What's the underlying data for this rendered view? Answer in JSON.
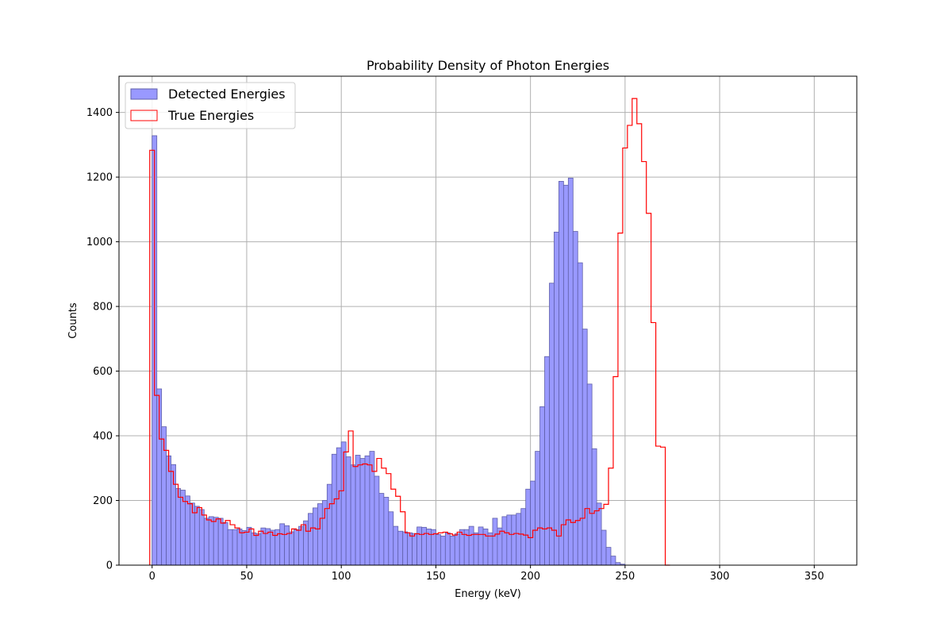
{
  "chart_data": {
    "type": "bar",
    "title": "Probability Density of Photon Energies",
    "xlabel": "Energy (keV)",
    "ylabel": "Counts",
    "xlim": [
      -17.5,
      372.5
    ],
    "ylim": [
      0,
      1512
    ],
    "xticks": [
      0,
      50,
      100,
      150,
      200,
      250,
      300,
      350
    ],
    "yticks": [
      0,
      200,
      400,
      600,
      800,
      1000,
      1200,
      1400
    ],
    "grid": true,
    "legend_position": "upper left",
    "bin_start": 0,
    "bin_width": 2.5,
    "series": [
      {
        "name": "Detected Energies",
        "style": "filled bars",
        "color": "#9999ff",
        "edge_color": "#5f5fa8",
        "values": [
          1328,
          545,
          428,
          338,
          311,
          237,
          232,
          214,
          192,
          182,
          172,
          145,
          150,
          148,
          145,
          132,
          110,
          110,
          112,
          107,
          117,
          100,
          97,
          115,
          113,
          108,
          110,
          128,
          122,
          103,
          110,
          120,
          137,
          160,
          177,
          190,
          200,
          250,
          343,
          363,
          381,
          335,
          310,
          340,
          330,
          338,
          352,
          275,
          222,
          210,
          165,
          120,
          105,
          103,
          100,
          98,
          118,
          117,
          112,
          110,
          95,
          90,
          100,
          90,
          97,
          110,
          110,
          120,
          100,
          118,
          112,
          100,
          145,
          115,
          150,
          155,
          155,
          160,
          175,
          235,
          260,
          352,
          490,
          645,
          872,
          1030,
          1187,
          1175,
          1197,
          1032,
          935,
          730,
          560,
          360,
          192,
          108,
          55,
          28,
          8,
          3,
          0
        ],
        "bins_start_at": 0
      },
      {
        "name": "True Energies",
        "style": "step outline",
        "color": "#ff0000",
        "values": [
          1283,
          525,
          390,
          355,
          290,
          250,
          210,
          197,
          190,
          162,
          178,
          155,
          140,
          135,
          143,
          130,
          138,
          125,
          115,
          100,
          102,
          112,
          92,
          105,
          98,
          102,
          92,
          97,
          95,
          98,
          112,
          108,
          125,
          105,
          115,
          112,
          145,
          175,
          190,
          205,
          230,
          350,
          415,
          305,
          310,
          313,
          310,
          290,
          330,
          300,
          283,
          235,
          213,
          165,
          100,
          90,
          97,
          95,
          98,
          95,
          97,
          100,
          102,
          97,
          93,
          102,
          95,
          92,
          95,
          95,
          95,
          90,
          90,
          96,
          105,
          100,
          95,
          98,
          96,
          93,
          85,
          108,
          115,
          112,
          115,
          108,
          90,
          125,
          140,
          132,
          138,
          145,
          175,
          160,
          168,
          175,
          188,
          300,
          583,
          1027,
          1290,
          1360,
          1443,
          1365,
          1248,
          1088,
          750,
          368,
          365,
          0
        ],
        "bins_start_at": -1.25
      }
    ]
  }
}
